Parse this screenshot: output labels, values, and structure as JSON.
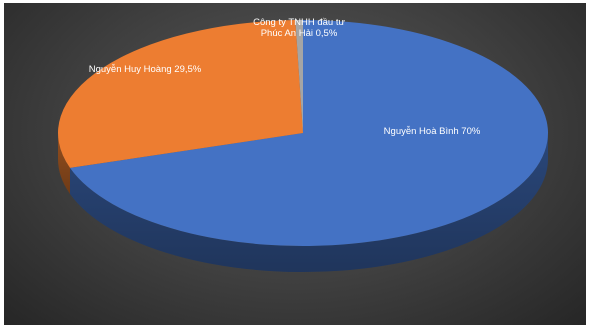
{
  "chart_data": {
    "type": "pie",
    "title": "",
    "slices": [
      {
        "name": "Nguyễn Hoà Bình",
        "value": 70,
        "label": "Nguyễn Hoà Bình 70%",
        "color": "#4472c4"
      },
      {
        "name": "Nguyễn Huy Hoàng",
        "value": 29.5,
        "label": "Nguyễn Huy Hoàng 29,5%",
        "color": "#ed7d31"
      },
      {
        "name": "Công ty TNHH đầu tư Phúc An Hải",
        "value": 0.5,
        "label": [
          "Công ty TNHH đầu tư",
          "Phúc An Hải 0,5%"
        ],
        "color": "#a5a5a5"
      }
    ],
    "legend": "none",
    "style": "3d"
  }
}
